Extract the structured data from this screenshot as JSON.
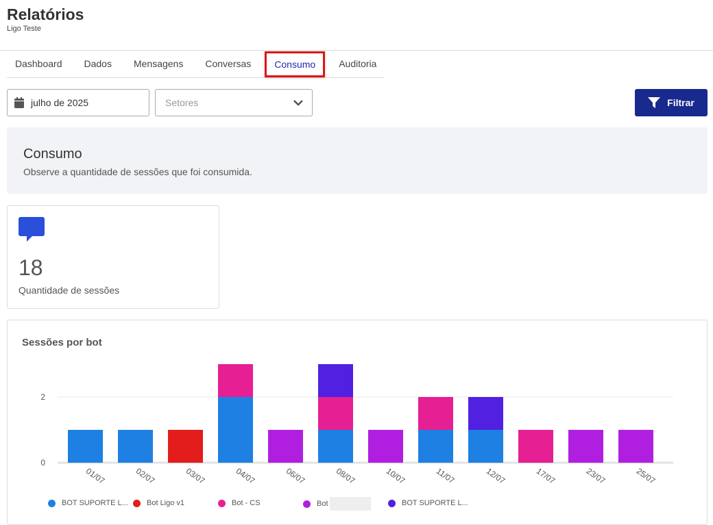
{
  "header": {
    "title": "Relatórios",
    "subtitle": "Ligo Teste"
  },
  "tabs": [
    {
      "label": "Dashboard"
    },
    {
      "label": "Dados"
    },
    {
      "label": "Mensagens"
    },
    {
      "label": "Conversas"
    },
    {
      "label": "Consumo",
      "active": true
    },
    {
      "label": "Auditoria"
    }
  ],
  "filters": {
    "date": "julho de 2025",
    "sectors_placeholder": "Setores",
    "filter_label": "Filtrar"
  },
  "banner": {
    "title": "Consumo",
    "description": "Observe a quantidade de sessões que foi consumida."
  },
  "stat": {
    "value": "18",
    "label": "Quantidade de sessões"
  },
  "chart_data": {
    "type": "bar",
    "stacked": true,
    "title": "Sessões por bot",
    "categories": [
      "01/07",
      "02/07",
      "03/07",
      "04/07",
      "06/07",
      "08/07",
      "10/07",
      "11/07",
      "12/07",
      "17/07",
      "23/07",
      "25/07"
    ],
    "yticks": [
      "0",
      "2"
    ],
    "ylim": [
      0,
      3
    ],
    "grid": true,
    "legend_position": "bottom",
    "series": [
      {
        "name": "BOT SUPORTE L...",
        "color": "#1e80e3",
        "values": [
          1,
          1,
          0,
          2,
          0,
          1,
          0,
          1,
          1,
          0,
          0,
          0
        ]
      },
      {
        "name": "Bot Ligo v1",
        "color": "#e31c1c",
        "values": [
          0,
          0,
          1,
          0,
          0,
          0,
          0,
          0,
          0,
          0,
          0,
          0
        ]
      },
      {
        "name": "Bot - CS",
        "color": "#e61f93",
        "values": [
          0,
          0,
          0,
          1,
          0,
          1,
          0,
          1,
          0,
          1,
          0,
          0
        ]
      },
      {
        "name": "Bot",
        "color": "#b01fe0",
        "values": [
          0,
          0,
          0,
          0,
          1,
          0,
          1,
          0,
          0,
          0,
          1,
          1
        ]
      },
      {
        "name": "BOT SUPORTE L...",
        "color": "#5120e0",
        "values": [
          0,
          0,
          0,
          0,
          0,
          1,
          0,
          0,
          1,
          0,
          0,
          0
        ]
      }
    ]
  }
}
